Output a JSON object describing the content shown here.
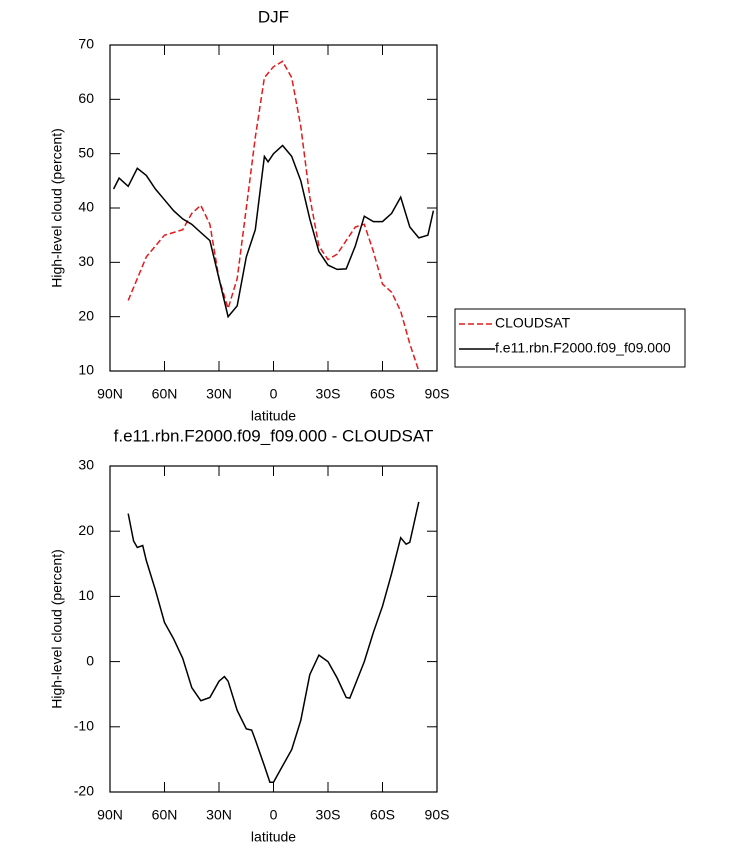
{
  "chart_data": [
    {
      "type": "line",
      "title": "DJF",
      "xlabel": "latitude",
      "ylabel": "High-level cloud (percent)",
      "xlim": [
        90,
        -90
      ],
      "ylim": [
        10,
        70
      ],
      "xticks": [
        {
          "value": 90,
          "label": "90N"
        },
        {
          "value": 60,
          "label": "60N"
        },
        {
          "value": 30,
          "label": "30N"
        },
        0,
        {
          "value": -30,
          "label": "30S"
        },
        {
          "value": -60,
          "label": "60S"
        },
        {
          "value": -90,
          "label": "90S"
        }
      ],
      "yticks": [
        10,
        20,
        30,
        40,
        50,
        60,
        70
      ],
      "legend": "right",
      "series": [
        {
          "name": "CLOUDSAT",
          "color": "#e41a1c",
          "dash": true,
          "x": [
            80,
            75,
            70,
            65,
            60,
            55,
            50,
            45,
            40,
            35,
            30,
            25,
            20,
            15,
            10,
            5,
            0,
            -5,
            -10,
            -15,
            -20,
            -25,
            -30,
            -35,
            -40,
            -45,
            -50,
            -55,
            -60,
            -65,
            -70,
            -75,
            -80
          ],
          "values": [
            23,
            27,
            31,
            33,
            35,
            35.5,
            36,
            39,
            40.5,
            37,
            27,
            21.5,
            27,
            40,
            53,
            64,
            66,
            67,
            64,
            55,
            42,
            33,
            30.5,
            31.5,
            34,
            36.5,
            37,
            32,
            26,
            24.5,
            21,
            15,
            10
          ]
        },
        {
          "name": "f.e11.rbn.F2000.f09_f09.000",
          "color": "#000000",
          "dash": false,
          "x": [
            88,
            85,
            80,
            75,
            70,
            65,
            60,
            55,
            50,
            45,
            40,
            35,
            30,
            25,
            20,
            15,
            10,
            5,
            3,
            0,
            -5,
            -10,
            -15,
            -20,
            -25,
            -30,
            -35,
            -40,
            -45,
            -50,
            -55,
            -60,
            -65,
            -70,
            -75,
            -80,
            -85,
            -88
          ],
          "values": [
            43.5,
            45.5,
            44,
            47.3,
            46,
            43.5,
            41.5,
            39.5,
            38,
            37,
            35.5,
            34,
            27,
            20,
            22,
            31,
            36,
            49.5,
            48.5,
            50,
            51.5,
            49.5,
            45,
            38,
            32,
            29.5,
            28.7,
            28.8,
            33,
            38.5,
            37.5,
            37.5,
            39,
            42,
            36.5,
            34.5,
            35,
            39.5
          ]
        }
      ]
    },
    {
      "type": "line",
      "title": "f.e11.rbn.F2000.f09_f09.000 - CLOUDSAT",
      "xlabel": "latitude",
      "ylabel": "High-level cloud (percent)",
      "xlim": [
        90,
        -90
      ],
      "ylim": [
        -20,
        30
      ],
      "xticks": [
        {
          "value": 90,
          "label": "90N"
        },
        {
          "value": 60,
          "label": "60N"
        },
        {
          "value": 30,
          "label": "30N"
        },
        0,
        {
          "value": -30,
          "label": "30S"
        },
        {
          "value": -60,
          "label": "60S"
        },
        {
          "value": -90,
          "label": "90S"
        }
      ],
      "yticks": [
        -20,
        -10,
        0,
        10,
        20,
        30
      ],
      "series": [
        {
          "color": "#000000",
          "dash": false,
          "x": [
            80,
            77,
            75,
            72,
            70,
            65,
            60,
            55,
            50,
            45,
            40,
            35,
            30,
            27,
            25,
            20,
            15,
            12,
            10,
            5,
            2,
            0,
            -5,
            -10,
            -15,
            -20,
            -25,
            -30,
            -35,
            -40,
            -42,
            -45,
            -50,
            -55,
            -60,
            -65,
            -70,
            -73,
            -75,
            -80
          ],
          "values": [
            22.7,
            18.5,
            17.5,
            17.8,
            15.5,
            11,
            6,
            3.5,
            0.5,
            -4,
            -6,
            -5.5,
            -3,
            -2.3,
            -3,
            -7.5,
            -10.3,
            -10.5,
            -12,
            -16,
            -18.5,
            -18.5,
            -16,
            -13.5,
            -9,
            -2,
            1,
            0,
            -2.5,
            -5.5,
            -5.6,
            -3.5,
            0,
            4.5,
            8.5,
            13.5,
            19,
            18,
            18.3,
            24.5
          ]
        }
      ]
    }
  ]
}
